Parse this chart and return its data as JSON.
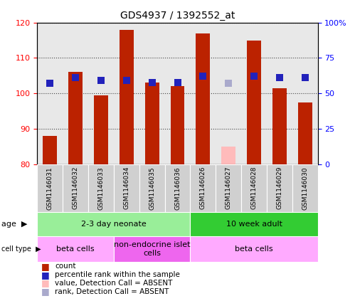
{
  "title": "GDS4937 / 1392552_at",
  "samples": [
    "GSM1146031",
    "GSM1146032",
    "GSM1146033",
    "GSM1146034",
    "GSM1146035",
    "GSM1146036",
    "GSM1146026",
    "GSM1146027",
    "GSM1146028",
    "GSM1146029",
    "GSM1146030"
  ],
  "count_values": [
    88,
    106,
    99.5,
    118,
    103,
    102,
    117,
    null,
    115,
    101.5,
    97.5
  ],
  "count_absent": [
    null,
    null,
    null,
    null,
    null,
    null,
    null,
    85,
    null,
    null,
    null
  ],
  "rank_values": [
    57,
    61,
    59,
    59,
    57.5,
    57.5,
    62,
    null,
    62,
    61,
    61
  ],
  "rank_absent": [
    null,
    null,
    null,
    null,
    null,
    null,
    null,
    57,
    null,
    null,
    null
  ],
  "ylim_left": [
    80,
    120
  ],
  "ylim_right": [
    0,
    100
  ],
  "yticks_left": [
    80,
    90,
    100,
    110,
    120
  ],
  "yticks_right": [
    0,
    25,
    50,
    75,
    100
  ],
  "ytick_labels_right": [
    "0",
    "25",
    "50",
    "75",
    "100%"
  ],
  "bar_color": "#bb2200",
  "bar_absent_color": "#ffbbbb",
  "rank_color": "#2222bb",
  "rank_absent_color": "#aaaacc",
  "age_groups": [
    {
      "label": "2-3 day neonate",
      "start": 0,
      "end": 6,
      "color": "#99ee99"
    },
    {
      "label": "10 week adult",
      "start": 6,
      "end": 11,
      "color": "#33cc33"
    }
  ],
  "cell_type_groups": [
    {
      "label": "beta cells",
      "start": 0,
      "end": 3,
      "color": "#ffaaff"
    },
    {
      "label": "non-endocrine islet\ncells",
      "start": 3,
      "end": 6,
      "color": "#ee66ee"
    },
    {
      "label": "beta cells",
      "start": 6,
      "end": 11,
      "color": "#ffaaff"
    }
  ],
  "legend_items": [
    {
      "label": "count",
      "color": "#bb2200"
    },
    {
      "label": "percentile rank within the sample",
      "color": "#2222bb"
    },
    {
      "label": "value, Detection Call = ABSENT",
      "color": "#ffbbbb"
    },
    {
      "label": "rank, Detection Call = ABSENT",
      "color": "#aaaacc"
    }
  ],
  "grid_color": "#444444",
  "background_color": "#ffffff",
  "bar_width": 0.55,
  "rank_marker_size": 55
}
